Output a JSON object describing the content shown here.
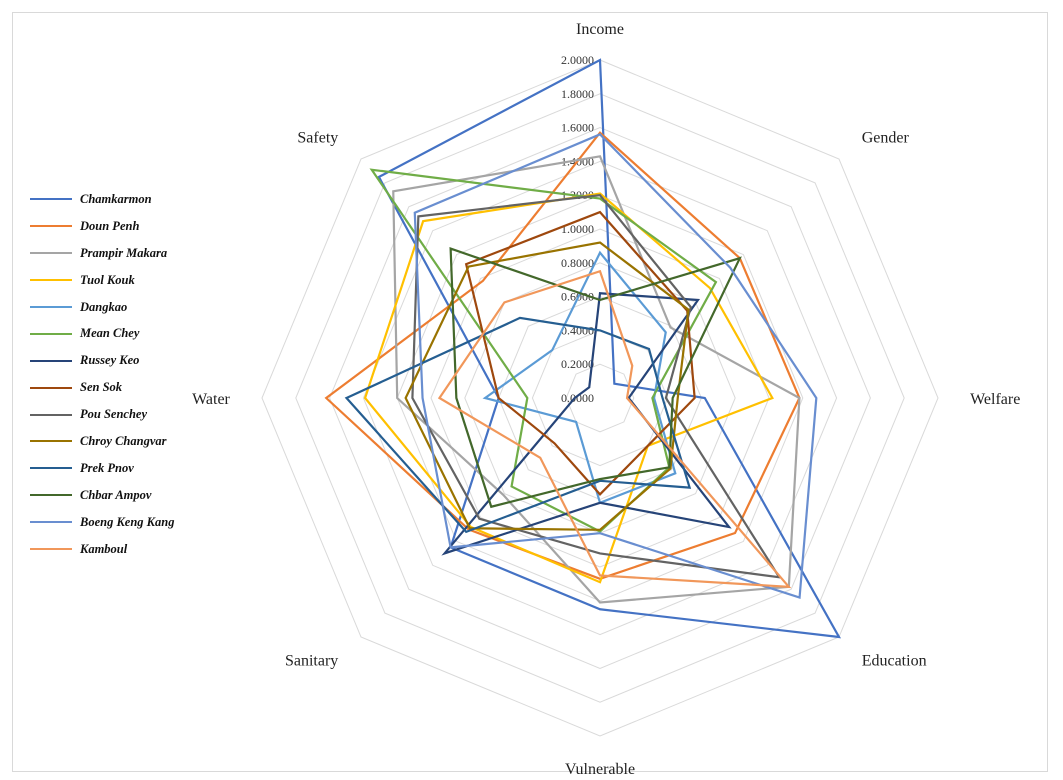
{
  "chart_data": {
    "type": "radar",
    "title": "",
    "axes": [
      "Income",
      "Gender",
      "Welfare",
      "Education",
      "Vulnerable",
      "Sanitary",
      "Water",
      "Safety"
    ],
    "rlim": [
      0,
      2
    ],
    "ticks": [
      "0.0000",
      "0.2000",
      "0.4000",
      "0.6000",
      "0.8000",
      "1.0000",
      "1.2000",
      "1.4000",
      "1.6000",
      "1.8000",
      "2.0000"
    ],
    "grid": true,
    "legend_position": "left",
    "series": [
      {
        "name": "Chamkarmon",
        "color": "#4472C4",
        "values": [
          2.0,
          0.12,
          0.62,
          2.0,
          1.25,
          1.25,
          0.6,
          1.85
        ]
      },
      {
        "name": "Doun Penh",
        "color": "#ED7D31",
        "values": [
          1.57,
          1.17,
          1.18,
          1.13,
          1.07,
          1.1,
          1.62,
          0.98
        ]
      },
      {
        "name": "Prampir Makara",
        "color": "#A5A5A5",
        "values": [
          1.43,
          0.59,
          1.18,
          1.58,
          1.21,
          0.81,
          1.2,
          1.73
        ]
      },
      {
        "name": "Tuol Kouk",
        "color": "#FFC000",
        "values": [
          1.21,
          0.92,
          1.02,
          0.4,
          1.09,
          1.08,
          1.39,
          1.48
        ]
      },
      {
        "name": "Dangkao",
        "color": "#5B9BD5",
        "values": [
          0.86,
          0.55,
          0.32,
          0.63,
          0.62,
          0.2,
          0.68,
          0.4
        ]
      },
      {
        "name": "Mean Chey",
        "color": "#70AD47",
        "values": [
          1.18,
          0.97,
          0.31,
          0.58,
          0.79,
          0.74,
          0.43,
          1.91
        ]
      },
      {
        "name": "Russey Keo",
        "color": "#264478",
        "values": [
          0.62,
          0.82,
          0.17,
          1.08,
          0.62,
          1.3,
          0.15,
          0.09
        ]
      },
      {
        "name": "Sen Sok",
        "color": "#9E480E",
        "values": [
          1.1,
          0.73,
          0.56,
          0.4,
          0.57,
          0.38,
          0.6,
          1.12
        ]
      },
      {
        "name": "Pou Senchey",
        "color": "#636363",
        "values": [
          1.2,
          0.76,
          0.39,
          1.5,
          0.92,
          1.01,
          1.11,
          1.52
        ]
      },
      {
        "name": "Chroy Changvar",
        "color": "#997300",
        "values": [
          0.92,
          0.74,
          0.46,
          0.59,
          0.78,
          1.09,
          1.15,
          1.1
        ]
      },
      {
        "name": "Prek Pnov",
        "color": "#255E91",
        "values": [
          0.4,
          0.41,
          0.37,
          0.75,
          0.49,
          1.12,
          1.5,
          0.67
        ]
      },
      {
        "name": "Chbar Ampov",
        "color": "#43682B",
        "values": [
          0.58,
          1.17,
          0.43,
          0.58,
          0.48,
          0.91,
          0.85,
          1.25
        ]
      },
      {
        "name": "Boeng Keng Kang",
        "color": "#698ED0",
        "values": [
          1.56,
          1.09,
          1.28,
          1.67,
          0.8,
          1.25,
          1.05,
          1.55
        ]
      },
      {
        "name": "Kamboul",
        "color": "#F1975A",
        "values": [
          0.75,
          0.27,
          0.16,
          1.58,
          1.05,
          0.5,
          0.95,
          0.8
        ]
      }
    ]
  }
}
